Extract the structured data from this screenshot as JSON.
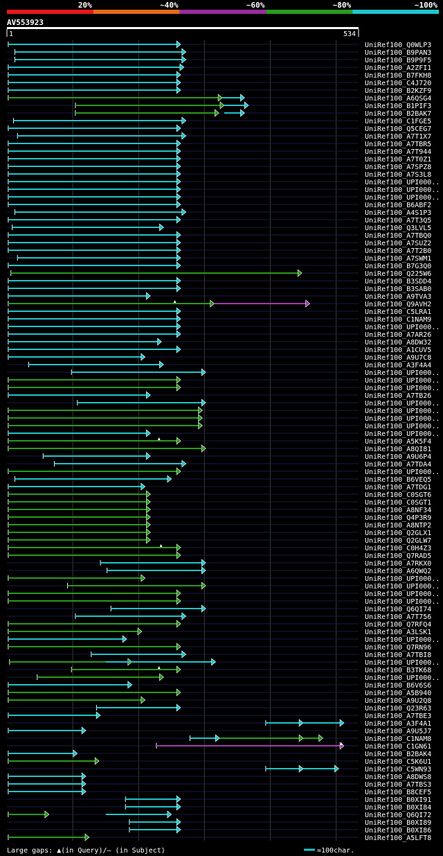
{
  "chart_data": {
    "type": "alignment-overview",
    "query_name": "AV553923",
    "query_start": "1",
    "query_end": "534",
    "query_length": 534,
    "color_scale": [
      {
        "label": "20%",
        "color": "#e8161e"
      },
      {
        "label": "~40%",
        "color": "#e46b16"
      },
      {
        "label": "~60%",
        "color": "#9a2b9e"
      },
      {
        "label": "~80%",
        "color": "#2a9a1e"
      },
      {
        "label": "~100%",
        "color": "#22c4cc"
      }
    ],
    "colors": {
      "cyan": "#22c4cc",
      "green": "#2a9a1e",
      "magenta": "#a03ab0",
      "grid": "#1a1a4a"
    },
    "footer": {
      "gaps_label": "Large gaps: ▲(in Query)/– (in Subject)",
      "scale_label": "=100char."
    },
    "hits": [
      {
        "name": "UniRef100_Q0WLP3",
        "segs": [
          [
            2,
            264,
            "c"
          ]
        ]
      },
      {
        "name": "UniRef100_B9PAN3",
        "segs": [
          [
            12,
            272,
            "c"
          ]
        ]
      },
      {
        "name": "UniRef100_B9P9F5",
        "segs": [
          [
            12,
            272,
            "c"
          ]
        ]
      },
      {
        "name": "UniRef100_A2ZFI1",
        "segs": [
          [
            2,
            269,
            "c"
          ]
        ]
      },
      {
        "name": "UniRef100_B7FKH8",
        "segs": [
          [
            2,
            264,
            "c"
          ]
        ]
      },
      {
        "name": "UniRef100_C4J720",
        "segs": [
          [
            2,
            264,
            "c"
          ]
        ]
      },
      {
        "name": "UniRef100_B2KZF9",
        "segs": [
          [
            2,
            264,
            "c"
          ]
        ]
      },
      {
        "name": "UniRef100_A6QSG4",
        "segs": [
          [
            2,
            327,
            "g"
          ],
          [
            327,
            361,
            "c"
          ]
        ]
      },
      {
        "name": "UniRef100_B1PIF3",
        "segs": [
          [
            104,
            330,
            "g"
          ],
          [
            330,
            367,
            "c"
          ]
        ]
      },
      {
        "name": "UniRef100_B2BAK7",
        "segs": [
          [
            104,
            322,
            "g"
          ],
          [
            330,
            361,
            "c"
          ]
        ]
      },
      {
        "name": "UniRef100_C1FGE5",
        "segs": [
          [
            10,
            272,
            "c"
          ]
        ]
      },
      {
        "name": "UniRef100_Q5CEG7",
        "segs": [
          [
            2,
            264,
            "c"
          ]
        ]
      },
      {
        "name": "UniRef100_A7T1X7",
        "segs": [
          [
            16,
            272,
            "c"
          ]
        ]
      },
      {
        "name": "UniRef100_A7TBR5",
        "segs": [
          [
            2,
            264,
            "c"
          ]
        ]
      },
      {
        "name": "UniRef100_A7T944",
        "segs": [
          [
            2,
            264,
            "c"
          ]
        ]
      },
      {
        "name": "UniRef100_A7T0Z1",
        "segs": [
          [
            2,
            264,
            "c"
          ]
        ]
      },
      {
        "name": "UniRef100_A7SPZ8",
        "segs": [
          [
            2,
            264,
            "c"
          ]
        ]
      },
      {
        "name": "UniRef100_A7S3L8",
        "segs": [
          [
            2,
            264,
            "c"
          ]
        ]
      },
      {
        "name": "UniRef100_UPI000..",
        "segs": [
          [
            2,
            264,
            "c"
          ]
        ]
      },
      {
        "name": "UniRef100_UPI000..",
        "segs": [
          [
            2,
            264,
            "c"
          ]
        ]
      },
      {
        "name": "UniRef100_UPI000..",
        "segs": [
          [
            2,
            264,
            "c"
          ]
        ]
      },
      {
        "name": "UniRef100_B6ABF2",
        "segs": [
          [
            2,
            264,
            "c"
          ]
        ]
      },
      {
        "name": "UniRef100_A4S1P3",
        "segs": [
          [
            12,
            272,
            "c"
          ]
        ]
      },
      {
        "name": "UniRef100_A7T3Q5",
        "segs": [
          [
            2,
            264,
            "c"
          ]
        ]
      },
      {
        "name": "UniRef100_Q3LVL5",
        "segs": [
          [
            8,
            238,
            "c"
          ]
        ]
      },
      {
        "name": "UniRef100_A7TBQ0",
        "segs": [
          [
            2,
            264,
            "c"
          ]
        ]
      },
      {
        "name": "UniRef100_A7SUZ2",
        "segs": [
          [
            2,
            264,
            "c"
          ]
        ]
      },
      {
        "name": "UniRef100_A7T2B0",
        "segs": [
          [
            2,
            264,
            "c"
          ]
        ]
      },
      {
        "name": "UniRef100_A7SWM1",
        "segs": [
          [
            16,
            264,
            "c"
          ]
        ]
      },
      {
        "name": "UniRef100_B7G3Q0",
        "segs": [
          [
            2,
            264,
            "c"
          ]
        ]
      },
      {
        "name": "UniRef100_Q225W6",
        "segs": [
          [
            6,
            448,
            "g"
          ]
        ]
      },
      {
        "name": "UniRef100_B3SDD4",
        "segs": [
          [
            2,
            264,
            "c"
          ]
        ]
      },
      {
        "name": "UniRef100_B3SAB0",
        "segs": [
          [
            2,
            264,
            "c"
          ]
        ]
      },
      {
        "name": "UniRef100_A9TVA3",
        "segs": [
          [
            2,
            218,
            "c"
          ]
        ]
      },
      {
        "name": "UniRef100_Q9AVH2",
        "segs": [
          [
            2,
            315,
            "g"
          ],
          [
            315,
            460,
            "m"
          ]
        ],
        "gap": [
          255
        ]
      },
      {
        "name": "UniRef100_C5LRA1",
        "segs": [
          [
            2,
            264,
            "c"
          ]
        ]
      },
      {
        "name": "UniRef100_C1NAM9",
        "segs": [
          [
            2,
            264,
            "c"
          ]
        ]
      },
      {
        "name": "UniRef100_UPI000..",
        "segs": [
          [
            2,
            264,
            "c"
          ]
        ]
      },
      {
        "name": "UniRef100_A7AR26",
        "segs": [
          [
            2,
            264,
            "c"
          ]
        ]
      },
      {
        "name": "UniRef100_A8DW32",
        "segs": [
          [
            2,
            235,
            "c"
          ]
        ]
      },
      {
        "name": "UniRef100_A1CUV5",
        "segs": [
          [
            2,
            264,
            "c"
          ]
        ]
      },
      {
        "name": "UniRef100_A9U7C8",
        "segs": [
          [
            2,
            210,
            "c"
          ]
        ]
      },
      {
        "name": "UniRef100_A3F4A4",
        "segs": [
          [
            33,
            238,
            "c"
          ]
        ]
      },
      {
        "name": "UniRef100_UPI000..",
        "segs": [
          [
            98,
            302,
            "c"
          ]
        ]
      },
      {
        "name": "UniRef100_UPI000..",
        "segs": [
          [
            2,
            264,
            "g"
          ]
        ]
      },
      {
        "name": "UniRef100_UPI000..",
        "segs": [
          [
            2,
            264,
            "g"
          ]
        ]
      },
      {
        "name": "UniRef100_A7TB26",
        "segs": [
          [
            2,
            218,
            "c"
          ]
        ]
      },
      {
        "name": "UniRef100_UPI000..",
        "segs": [
          [
            107,
            302,
            "c"
          ]
        ]
      },
      {
        "name": "UniRef100_UPI000..",
        "segs": [
          [
            2,
            297,
            "g"
          ]
        ]
      },
      {
        "name": "UniRef100_UPI000..",
        "segs": [
          [
            2,
            297,
            "g"
          ]
        ]
      },
      {
        "name": "UniRef100_UPI000..",
        "segs": [
          [
            2,
            297,
            "g"
          ]
        ]
      },
      {
        "name": "UniRef100_UPI000..",
        "segs": [
          [
            2,
            218,
            "c"
          ]
        ]
      },
      {
        "name": "UniRef100_A5K5F4",
        "segs": [
          [
            2,
            264,
            "g"
          ]
        ],
        "gap": [
          231
        ]
      },
      {
        "name": "UniRef100_A8QI81",
        "segs": [
          [
            2,
            302,
            "g"
          ]
        ]
      },
      {
        "name": "UniRef100_A9U6P4",
        "segs": [
          [
            55,
            218,
            "c"
          ]
        ]
      },
      {
        "name": "UniRef100_A7TDA4",
        "segs": [
          [
            72,
            272,
            "c"
          ]
        ]
      },
      {
        "name": "UniRef100_UPI000..",
        "segs": [
          [
            2,
            264,
            "g"
          ]
        ]
      },
      {
        "name": "UniRef100_B6VEQ5",
        "segs": [
          [
            12,
            250,
            "c"
          ]
        ]
      },
      {
        "name": "UniRef100_A7TDG1",
        "segs": [
          [
            2,
            210,
            "c"
          ]
        ]
      },
      {
        "name": "UniRef100_C0SGT6",
        "segs": [
          [
            2,
            218,
            "g"
          ]
        ]
      },
      {
        "name": "UniRef100_C0SGT1",
        "segs": [
          [
            2,
            218,
            "g"
          ]
        ]
      },
      {
        "name": "UniRef100_A8NF34",
        "segs": [
          [
            2,
            218,
            "g"
          ]
        ]
      },
      {
        "name": "UniRef100_Q4P3R9",
        "segs": [
          [
            2,
            218,
            "g"
          ]
        ]
      },
      {
        "name": "UniRef100_A8NTP2",
        "segs": [
          [
            2,
            218,
            "g"
          ]
        ]
      },
      {
        "name": "UniRef100_Q2GLX1",
        "segs": [
          [
            2,
            218,
            "g"
          ]
        ]
      },
      {
        "name": "UniRef100_Q2GLW7",
        "segs": [
          [
            2,
            218,
            "g"
          ]
        ]
      },
      {
        "name": "UniRef100_C0H4Z3",
        "segs": [
          [
            2,
            264,
            "g"
          ]
        ],
        "gap": [
          234
        ]
      },
      {
        "name": "UniRef100_Q7RAD5",
        "segs": [
          [
            2,
            264,
            "g"
          ]
        ]
      },
      {
        "name": "UniRef100_A7RKX0",
        "segs": [
          [
            142,
            302,
            "c"
          ]
        ]
      },
      {
        "name": "UniRef100_A6QWQ2",
        "segs": [
          [
            152,
            302,
            "c"
          ]
        ]
      },
      {
        "name": "UniRef100_UPI000..",
        "segs": [
          [
            2,
            210,
            "g"
          ]
        ]
      },
      {
        "name": "UniRef100_UPI000..",
        "segs": [
          [
            92,
            302,
            "g"
          ]
        ]
      },
      {
        "name": "UniRef100_UPI000..",
        "segs": [
          [
            2,
            264,
            "g"
          ]
        ]
      },
      {
        "name": "UniRef100_UPI000..",
        "segs": [
          [
            2,
            264,
            "g"
          ]
        ]
      },
      {
        "name": "UniRef100_Q6QI74",
        "segs": [
          [
            158,
            302,
            "c"
          ]
        ]
      },
      {
        "name": "UniRef100_A7T756",
        "segs": [
          [
            104,
            272,
            "c"
          ]
        ]
      },
      {
        "name": "UniRef100_Q7RFQ4",
        "segs": [
          [
            2,
            264,
            "g"
          ]
        ]
      },
      {
        "name": "UniRef100_A3LSK1",
        "segs": [
          [
            2,
            205,
            "g"
          ]
        ]
      },
      {
        "name": "UniRef100_UPI000..",
        "segs": [
          [
            2,
            182,
            "c"
          ]
        ]
      },
      {
        "name": "UniRef100_Q7RN96",
        "segs": [
          [
            2,
            264,
            "g"
          ]
        ]
      },
      {
        "name": "UniRef100_A7TBI8",
        "segs": [
          [
            128,
            272,
            "c"
          ]
        ]
      },
      {
        "name": "UniRef100_UPI000..",
        "segs": [
          [
            4,
            190,
            "g"
          ],
          [
            150,
            317,
            "c"
          ]
        ]
      },
      {
        "name": "UniRef100_B3TK68",
        "segs": [
          [
            98,
            264,
            "g"
          ]
        ],
        "gap": [
          231
        ]
      },
      {
        "name": "UniRef100_UPI000..",
        "segs": [
          [
            46,
            238,
            "g"
          ]
        ]
      },
      {
        "name": "UniRef100_B6V6S6",
        "segs": [
          [
            2,
            190,
            "c"
          ]
        ]
      },
      {
        "name": "UniRef100_A5B940",
        "segs": [
          [
            2,
            264,
            "g"
          ]
        ]
      },
      {
        "name": "UniRef100_A9U2Q8",
        "segs": [
          [
            2,
            210,
            "g"
          ]
        ]
      },
      {
        "name": "UniRef100_Q23R63",
        "segs": [
          [
            136,
            264,
            "c"
          ]
        ]
      },
      {
        "name": "UniRef100_A7TBE3",
        "segs": [
          [
            2,
            142,
            "c"
          ]
        ]
      },
      {
        "name": "UniRef100_A3F4A1",
        "segs": [
          [
            393,
            450,
            "c"
          ],
          [
            450,
            512,
            "c"
          ]
        ]
      },
      {
        "name": "UniRef100_A9U5J7",
        "segs": [
          [
            2,
            120,
            "c"
          ]
        ]
      },
      {
        "name": "UniRef100_C1NAM8",
        "segs": [
          [
            278,
            323,
            "c"
          ],
          [
            323,
            450,
            "g"
          ],
          [
            450,
            480,
            "g"
          ]
        ]
      },
      {
        "name": "UniRef100_C1GN61",
        "segs": [
          [
            227,
            512,
            "m"
          ]
        ],
        "gap": [
          508
        ]
      },
      {
        "name": "UniRef100_B2BAK4",
        "segs": [
          [
            2,
            107,
            "c"
          ]
        ]
      },
      {
        "name": "UniRef100_C5K6U1",
        "segs": [
          [
            2,
            140,
            "g"
          ]
        ]
      },
      {
        "name": "UniRef100_C5WN93",
        "segs": [
          [
            393,
            450,
            "c"
          ],
          [
            450,
            504,
            "c"
          ]
        ]
      },
      {
        "name": "UniRef100_A8DWS8",
        "segs": [
          [
            2,
            120,
            "c"
          ]
        ]
      },
      {
        "name": "UniRef100_A7TBS3",
        "segs": [
          [
            2,
            120,
            "c"
          ]
        ]
      },
      {
        "name": "UniRef100_B8CEF5",
        "segs": [
          [
            2,
            120,
            "c"
          ]
        ]
      },
      {
        "name": "UniRef100_B0XI91",
        "segs": [
          [
            180,
            264,
            "c"
          ]
        ]
      },
      {
        "name": "UniRef100_B0XI84",
        "segs": [
          [
            180,
            264,
            "c"
          ]
        ]
      },
      {
        "name": "UniRef100_Q6QI72",
        "segs": [
          [
            2,
            64,
            "g"
          ],
          [
            150,
            250,
            "c"
          ]
        ]
      },
      {
        "name": "UniRef100_B0XI89",
        "segs": [
          [
            186,
            264,
            "c"
          ]
        ]
      },
      {
        "name": "UniRef100_B0XI86",
        "segs": [
          [
            186,
            264,
            "c"
          ]
        ]
      },
      {
        "name": "UniRef100_A5LFT8",
        "segs": [
          [
            2,
            125,
            "g"
          ]
        ]
      }
    ]
  }
}
